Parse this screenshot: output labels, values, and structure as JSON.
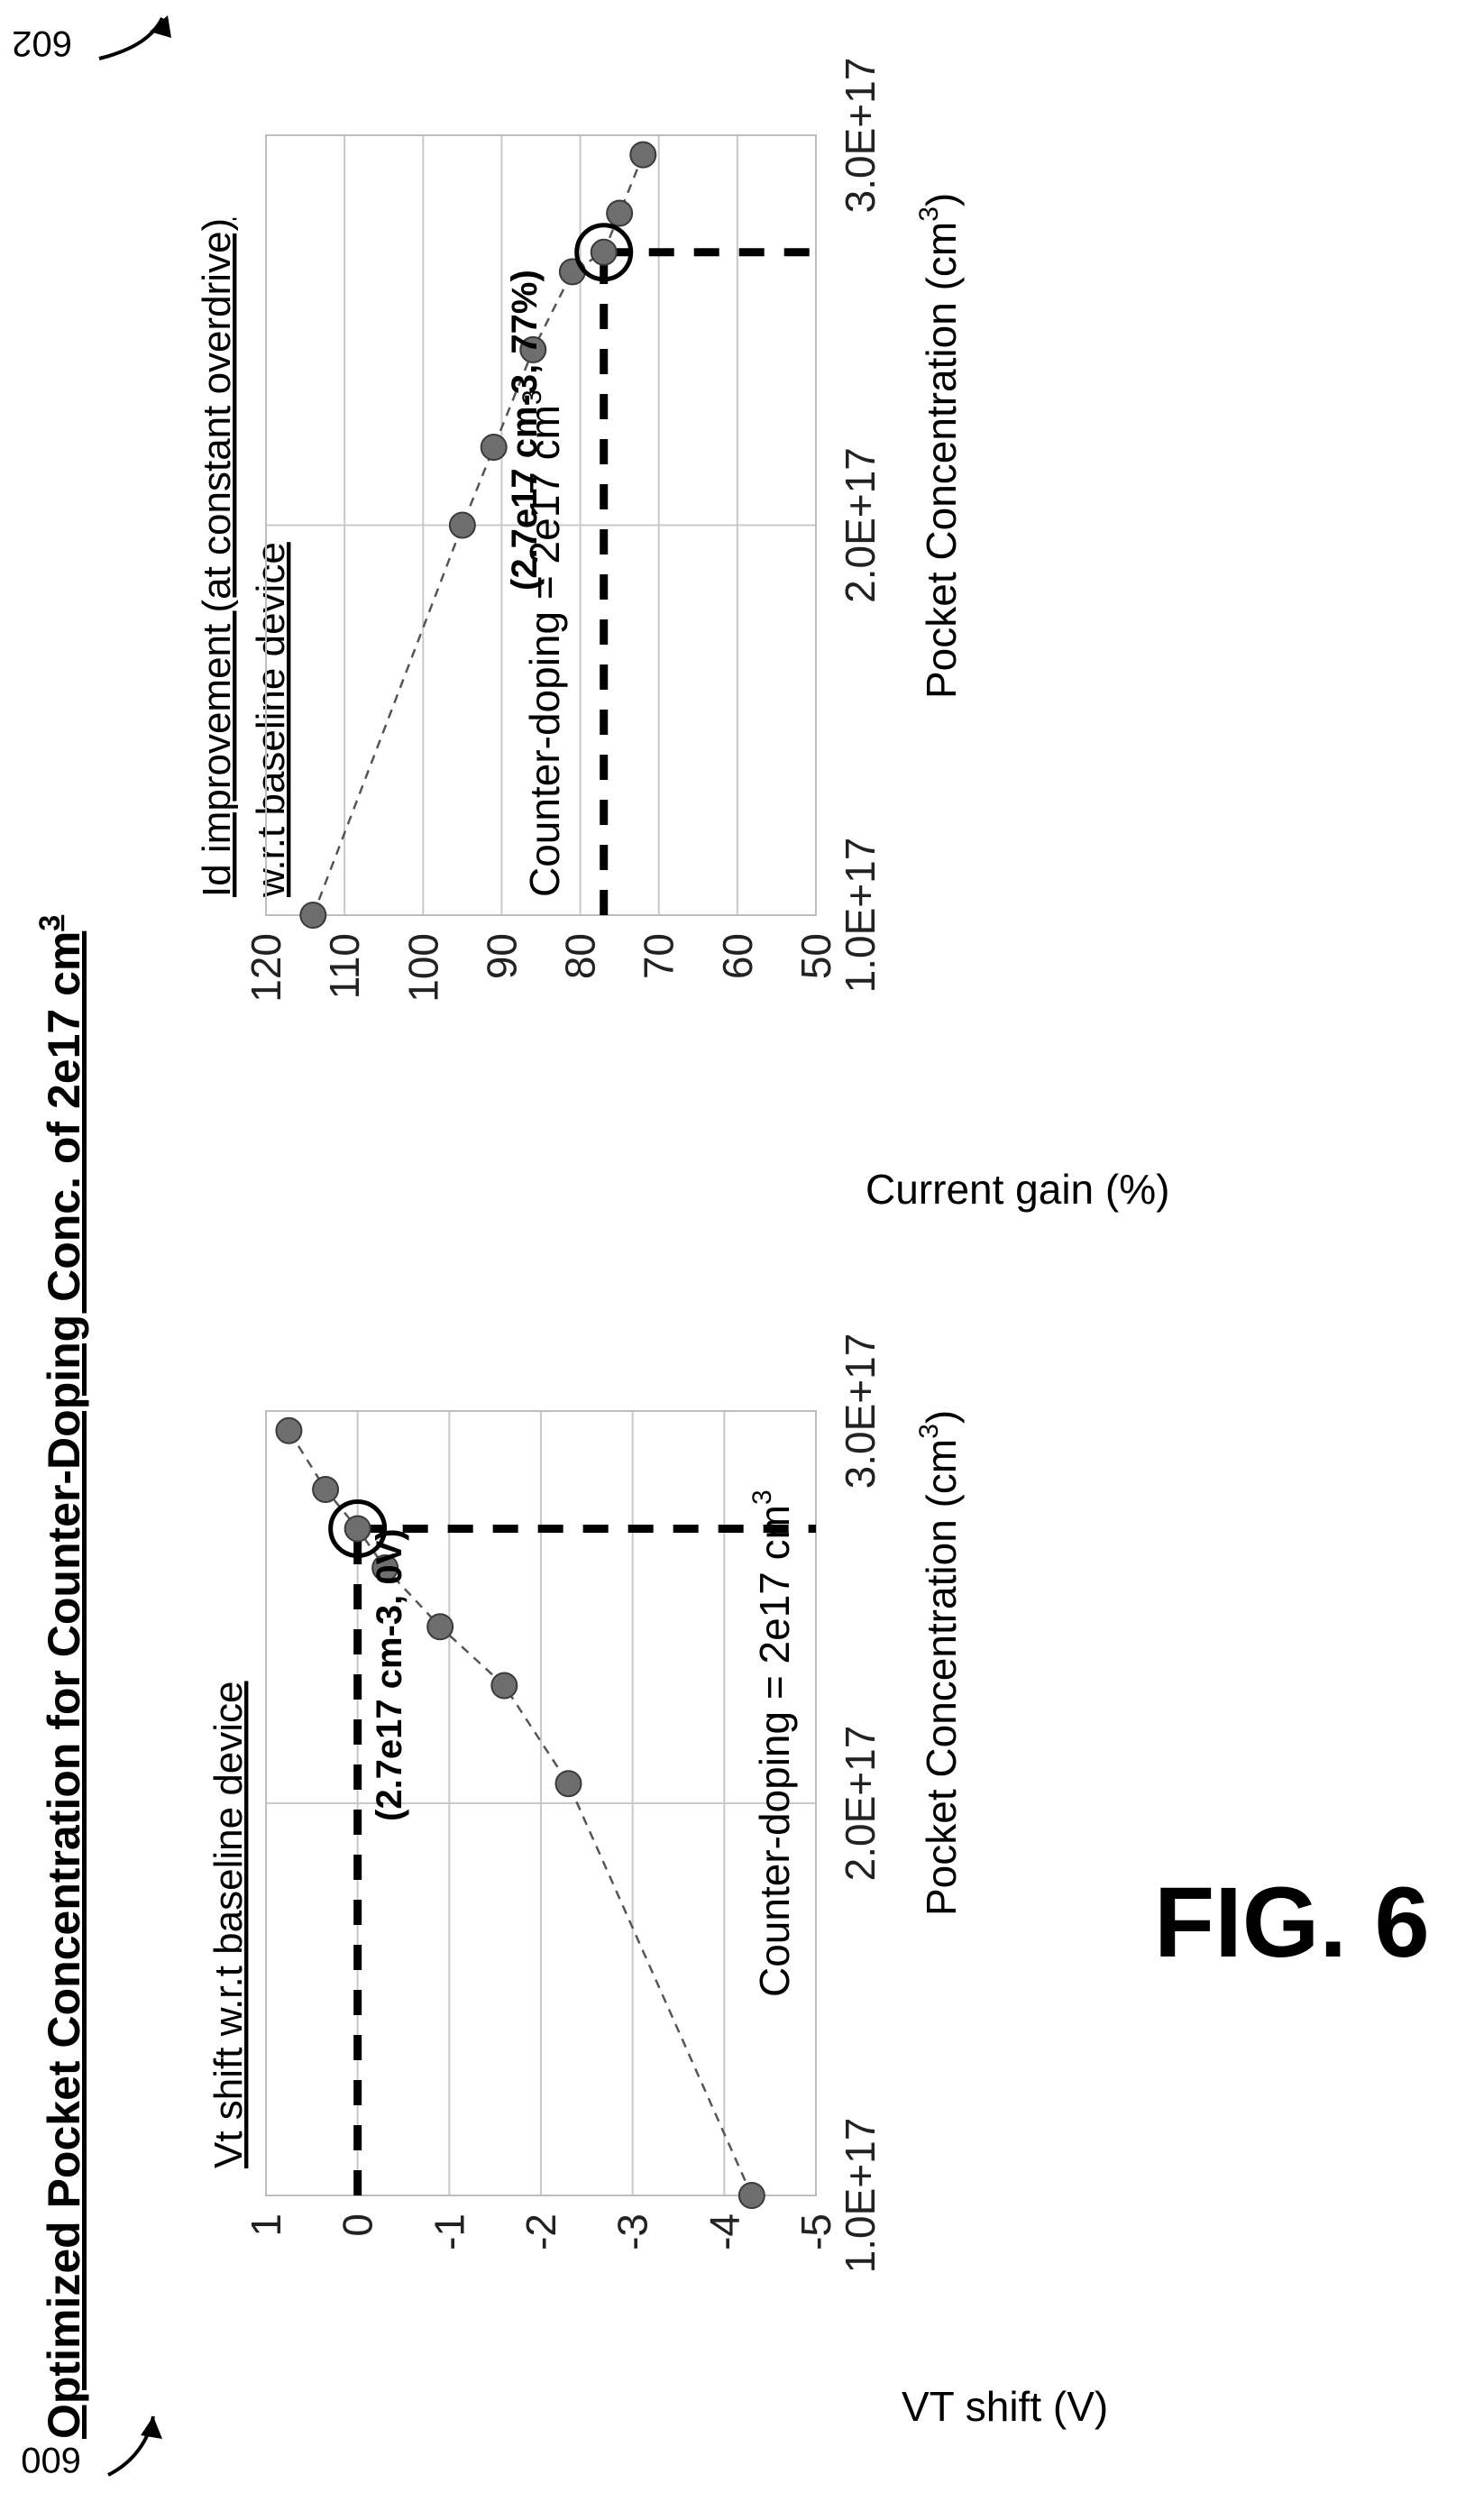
{
  "figure": {
    "title_main": "Optimized Pocket Concentration for Counter-Doping Conc. of 2e17 cm",
    "title_sup": "3",
    "fig_label": "FIG. 6",
    "ref_left": "600",
    "ref_right": "602"
  },
  "chart_data": [
    {
      "type": "scatter",
      "title": "Vt shift w.r.t baseline device",
      "ylabel": "VT shift (V)",
      "xlabel": "Pocket Concentration (cm",
      "xlabel_sup": "3",
      "xlabel_close": ")",
      "xlim": [
        1e+17,
        3e+17
      ],
      "ylim": [
        -5,
        1
      ],
      "x_ticks": [
        "1.0E+17",
        "2.0E+17",
        "3.0E+17"
      ],
      "y_ticks": [
        "1",
        "0",
        "-1",
        "-2",
        "-3",
        "-4",
        "-5"
      ],
      "grid": true,
      "annotation": "Counter-doping = 2e17 cm",
      "annotation_sup": "3",
      "callout": "(2.7e17 cm-3, 0V)",
      "highlight": {
        "x": 2.7e+17,
        "y": 0
      },
      "x": [
        1e+17,
        2.05e+17,
        2.3e+17,
        2.45e+17,
        2.6e+17,
        2.7e+17,
        2.8e+17,
        2.95e+17
      ],
      "y": [
        -4.3,
        -2.3,
        -1.6,
        -0.9,
        -0.3,
        0.0,
        0.35,
        0.75
      ]
    },
    {
      "type": "scatter",
      "title": "Id improvement (at constant overdrive)",
      "title_line2": "w.r.t baseline device",
      "ylabel": "Current gain (%)",
      "xlabel": "Pocket Concentration (cm",
      "xlabel_sup": "3",
      "xlabel_close": ")",
      "xlim": [
        1e+17,
        3e+17
      ],
      "ylim": [
        50,
        120
      ],
      "x_ticks": [
        "1.0E+17",
        "2.0E+17",
        "3.0E+17"
      ],
      "y_ticks": [
        "120",
        "110",
        "100",
        "90",
        "80",
        "70",
        "60",
        "50"
      ],
      "grid": true,
      "annotation": "Counter-doping = 2e17 cm",
      "annotation_sup": "3",
      "callout": "(2.7e17 cm-3, 77%)",
      "highlight": {
        "x": 2.7e+17,
        "y": 77
      },
      "x": [
        1e+17,
        2e+17,
        2.2e+17,
        2.45e+17,
        2.65e+17,
        2.7e+17,
        2.8e+17,
        2.95e+17
      ],
      "y": [
        114,
        95,
        91,
        86,
        81,
        77,
        75,
        72
      ]
    }
  ]
}
